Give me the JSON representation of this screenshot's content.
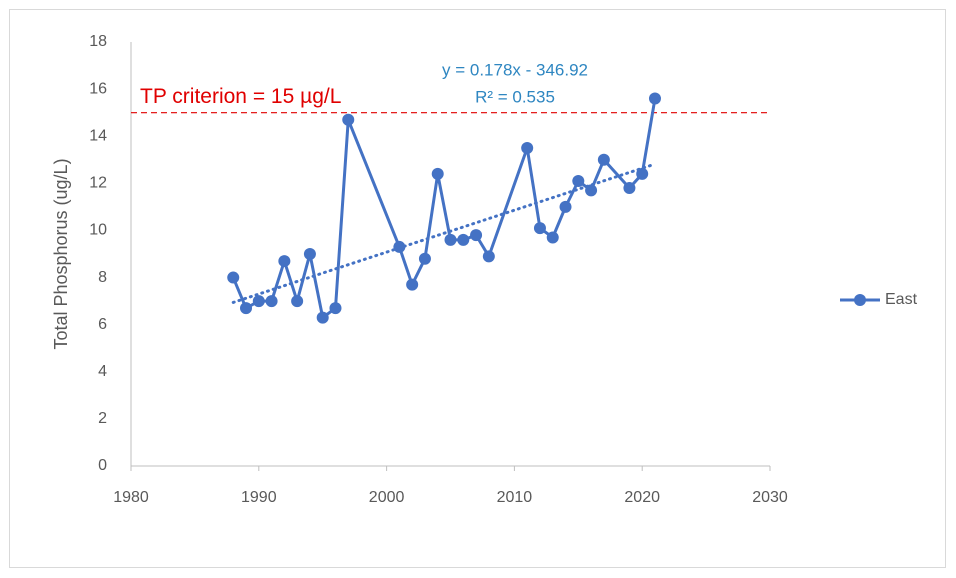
{
  "chart_data": {
    "type": "scatter-line",
    "y_label": "Total Phosphorus (ug/L)",
    "x": [
      1988,
      1989,
      1990,
      1991,
      1992,
      1993,
      1994,
      1995,
      1996,
      1997,
      2001,
      2002,
      2003,
      2004,
      2005,
      2006,
      2007,
      2008,
      2011,
      2012,
      2013,
      2014,
      2015,
      2016,
      2017,
      2019,
      2020,
      2021
    ],
    "series": [
      {
        "name": "East",
        "color": "#4472c4",
        "values": [
          8.0,
          6.7,
          7.0,
          7.0,
          8.7,
          7.0,
          9.0,
          6.3,
          6.7,
          14.7,
          9.3,
          7.7,
          8.8,
          12.4,
          9.6,
          9.6,
          9.8,
          8.9,
          13.5,
          10.1,
          9.7,
          11.0,
          12.1,
          11.7,
          13.0,
          11.8,
          12.4,
          15.6
        ]
      }
    ],
    "trendline": {
      "equation": "y = 0.178x - 346.92",
      "r2": "R² = 0.535",
      "slope": 0.178,
      "intercept": -346.92,
      "color": "#4472c4"
    },
    "reference_line": {
      "label": "TP criterion = 15 µg/L",
      "value": 15,
      "color": "#e00000"
    },
    "xlim": [
      1980,
      2030
    ],
    "xticks": [
      1980,
      1990,
      2000,
      2010,
      2020,
      2030
    ],
    "ylim": [
      0,
      18
    ],
    "yticks": [
      0,
      2,
      4,
      6,
      8,
      10,
      12,
      14,
      16,
      18
    ],
    "grid": false,
    "legend": "right"
  }
}
